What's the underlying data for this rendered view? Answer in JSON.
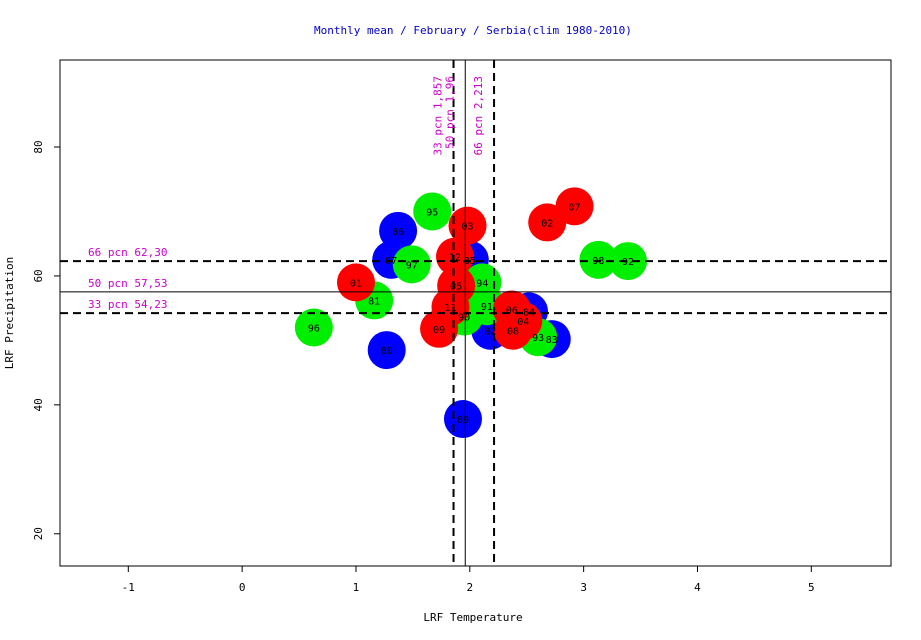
{
  "chart_data": {
    "type": "scatter",
    "title": "Monthly mean / February / Serbia(clim 1980-2010)",
    "xlabel": "LRF Temperature",
    "ylabel": "LRF Precipitation",
    "xlim": [
      -1.6,
      5.7
    ],
    "ylim": [
      15,
      93.5
    ],
    "xticks": [
      -1,
      0,
      1,
      2,
      3,
      4,
      5
    ],
    "yticks": [
      20,
      40,
      60,
      80
    ],
    "grid": false,
    "colors": {
      "red": "#ff0000",
      "green": "#00ee00",
      "blue": "#0000ff",
      "ref_label": "#cc00cc",
      "title": "#0000cc"
    },
    "vlines": [
      {
        "x": 1.857,
        "style": "dashed",
        "label": "33 pcn 1,857"
      },
      {
        "x": 1.96,
        "style": "solid",
        "label": "50 pcn 1,96"
      },
      {
        "x": 2.213,
        "style": "dashed",
        "label": "66 pcn 2,213"
      }
    ],
    "hlines": [
      {
        "y": 62.3,
        "style": "dashed",
        "label": "66 pcn 62,30"
      },
      {
        "y": 57.53,
        "style": "solid",
        "label": "50 pcn 57,53"
      },
      {
        "y": 54.23,
        "style": "dashed",
        "label": "33 pcn 54,23"
      }
    ],
    "points": [
      {
        "label": "86",
        "x": 1.37,
        "y": 67.0,
        "color": "blue"
      },
      {
        "label": "87",
        "x": 1.31,
        "y": 62.5,
        "color": "blue"
      },
      {
        "label": "80",
        "x": 1.27,
        "y": 48.5,
        "color": "blue"
      },
      {
        "label": "89",
        "x": 1.94,
        "y": 37.8,
        "color": "blue"
      },
      {
        "label": "83",
        "x": 2.72,
        "y": 50.2,
        "color": "blue"
      },
      {
        "label": "84",
        "x": 2.52,
        "y": 54.5,
        "color": "blue"
      },
      {
        "label": "85",
        "x": 2.0,
        "y": 62.5,
        "color": "blue"
      },
      {
        "label": "82",
        "x": 2.18,
        "y": 51.5,
        "color": "blue"
      },
      {
        "label": "95",
        "x": 1.67,
        "y": 70.0,
        "color": "green"
      },
      {
        "label": "97",
        "x": 1.49,
        "y": 61.8,
        "color": "green"
      },
      {
        "label": "81",
        "x": 1.16,
        "y": 56.2,
        "color": "green"
      },
      {
        "label": "96",
        "x": 0.63,
        "y": 52.0,
        "color": "green"
      },
      {
        "label": "98",
        "x": 3.13,
        "y": 62.5,
        "color": "green"
      },
      {
        "label": "92",
        "x": 3.39,
        "y": 62.3,
        "color": "green"
      },
      {
        "label": "94",
        "x": 2.11,
        "y": 59.0,
        "color": "green"
      },
      {
        "label": "91",
        "x": 2.15,
        "y": 55.3,
        "color": "green"
      },
      {
        "label": "90",
        "x": 1.95,
        "y": 53.7,
        "color": "green"
      },
      {
        "label": "93",
        "x": 2.6,
        "y": 50.5,
        "color": "green"
      },
      {
        "label": "01",
        "x": 1.0,
        "y": 59.0,
        "color": "red"
      },
      {
        "label": "03",
        "x": 1.98,
        "y": 67.8,
        "color": "red"
      },
      {
        "label": "02",
        "x": 2.68,
        "y": 68.3,
        "color": "red"
      },
      {
        "label": "07",
        "x": 2.92,
        "y": 70.8,
        "color": "red"
      },
      {
        "label": "12",
        "x": 1.87,
        "y": 63.0,
        "color": "red"
      },
      {
        "label": "05",
        "x": 1.88,
        "y": 58.5,
        "color": "red"
      },
      {
        "label": "11",
        "x": 1.83,
        "y": 55.2,
        "color": "red"
      },
      {
        "label": "09",
        "x": 1.73,
        "y": 51.8,
        "color": "red"
      },
      {
        "label": "06",
        "x": 2.37,
        "y": 54.8,
        "color": "red"
      },
      {
        "label": "04",
        "x": 2.47,
        "y": 53.0,
        "color": "red"
      },
      {
        "label": "08",
        "x": 2.38,
        "y": 51.5,
        "color": "red"
      }
    ]
  }
}
